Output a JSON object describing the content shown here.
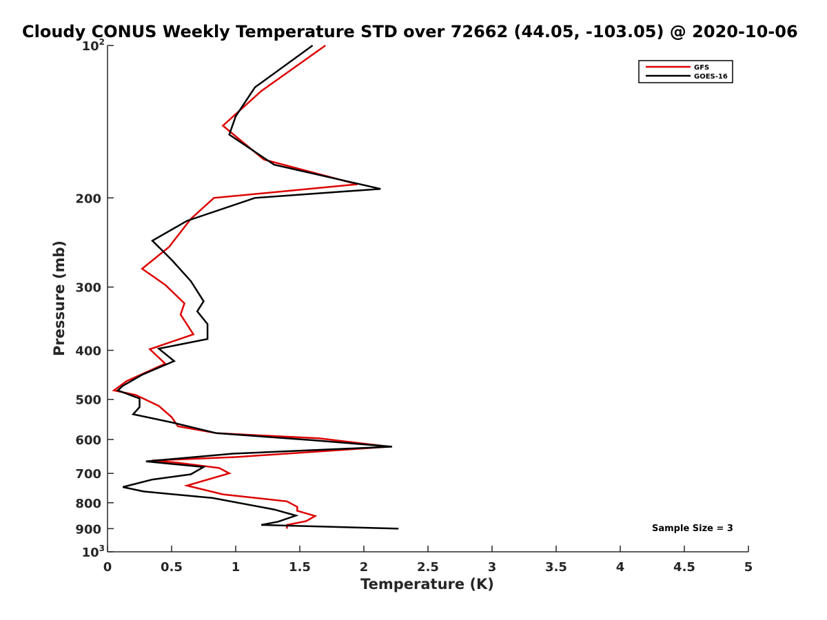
{
  "chart_data": {
    "type": "line",
    "title": "Cloudy CONUS Weekly Temperature STD over 72662 (44.05, -103.05) @ 2020-10-06",
    "xlabel": "Temperature (K)",
    "ylabel": "Pressure (mb)",
    "xlim": [
      0,
      5
    ],
    "ylim": [
      100,
      1000
    ],
    "y_scale": "log",
    "y_reversed": true,
    "x_ticks": [
      "0",
      "0.5",
      "1",
      "1.5",
      "2",
      "2.5",
      "3",
      "3.5",
      "4",
      "4.5",
      "5"
    ],
    "y_ticks": [
      {
        "value": 100,
        "base": "10",
        "exp": "2"
      },
      {
        "value": 200,
        "label": "200"
      },
      {
        "value": 300,
        "label": "300"
      },
      {
        "value": 400,
        "label": "400"
      },
      {
        "value": 500,
        "label": "500"
      },
      {
        "value": 600,
        "label": "600"
      },
      {
        "value": 700,
        "label": "700"
      },
      {
        "value": 800,
        "label": "800"
      },
      {
        "value": 900,
        "label": "900"
      },
      {
        "value": 1000,
        "base": "10",
        "exp": "3"
      }
    ],
    "grid": false,
    "legend_position": "top-right",
    "annotation": "Sample Size = 3",
    "series": [
      {
        "name": "GFS",
        "color": "#dd0000",
        "points": [
          [
            1.7,
            100
          ],
          [
            1.2,
            123
          ],
          [
            0.9,
            144
          ],
          [
            1.22,
            168
          ],
          [
            1.95,
            188
          ],
          [
            0.83,
            200
          ],
          [
            0.65,
            220
          ],
          [
            0.48,
            250
          ],
          [
            0.27,
            276
          ],
          [
            0.45,
            297
          ],
          [
            0.6,
            323
          ],
          [
            0.57,
            340
          ],
          [
            0.67,
            372
          ],
          [
            0.33,
            398
          ],
          [
            0.45,
            425
          ],
          [
            0.15,
            460
          ],
          [
            0.05,
            480
          ],
          [
            0.22,
            490
          ],
          [
            0.4,
            515
          ],
          [
            0.5,
            542
          ],
          [
            0.55,
            565
          ],
          [
            0.85,
            583
          ],
          [
            1.65,
            597
          ],
          [
            2.2,
            620
          ],
          [
            1.0,
            650
          ],
          [
            0.35,
            660
          ],
          [
            0.55,
            667
          ],
          [
            0.87,
            683
          ],
          [
            0.95,
            700
          ],
          [
            0.62,
            740
          ],
          [
            0.9,
            770
          ],
          [
            1.4,
            795
          ],
          [
            1.48,
            815
          ],
          [
            1.48,
            830
          ],
          [
            1.62,
            850
          ],
          [
            1.55,
            870
          ],
          [
            1.4,
            885
          ],
          [
            1.4,
            900
          ]
        ]
      },
      {
        "name": "GOES-16",
        "color": "#000000",
        "points": [
          [
            1.6,
            100
          ],
          [
            1.15,
            121
          ],
          [
            1.0,
            138
          ],
          [
            0.95,
            150
          ],
          [
            1.3,
            172
          ],
          [
            2.13,
            192
          ],
          [
            1.15,
            200
          ],
          [
            0.62,
            222
          ],
          [
            0.35,
            243
          ],
          [
            0.5,
            265
          ],
          [
            0.65,
            292
          ],
          [
            0.75,
            320
          ],
          [
            0.7,
            335
          ],
          [
            0.78,
            355
          ],
          [
            0.78,
            380
          ],
          [
            0.4,
            397
          ],
          [
            0.52,
            420
          ],
          [
            0.27,
            447
          ],
          [
            0.12,
            470
          ],
          [
            0.08,
            480
          ],
          [
            0.25,
            498
          ],
          [
            0.25,
            518
          ],
          [
            0.2,
            535
          ],
          [
            0.5,
            555
          ],
          [
            0.85,
            583
          ],
          [
            1.6,
            602
          ],
          [
            2.22,
            620
          ],
          [
            0.98,
            640
          ],
          [
            0.3,
            663
          ],
          [
            0.75,
            680
          ],
          [
            0.65,
            703
          ],
          [
            0.35,
            720
          ],
          [
            0.12,
            745
          ],
          [
            0.28,
            760
          ],
          [
            0.82,
            783
          ],
          [
            1.3,
            825
          ],
          [
            1.47,
            848
          ],
          [
            1.33,
            872
          ],
          [
            1.2,
            885
          ],
          [
            2.27,
            900
          ]
        ]
      }
    ]
  }
}
